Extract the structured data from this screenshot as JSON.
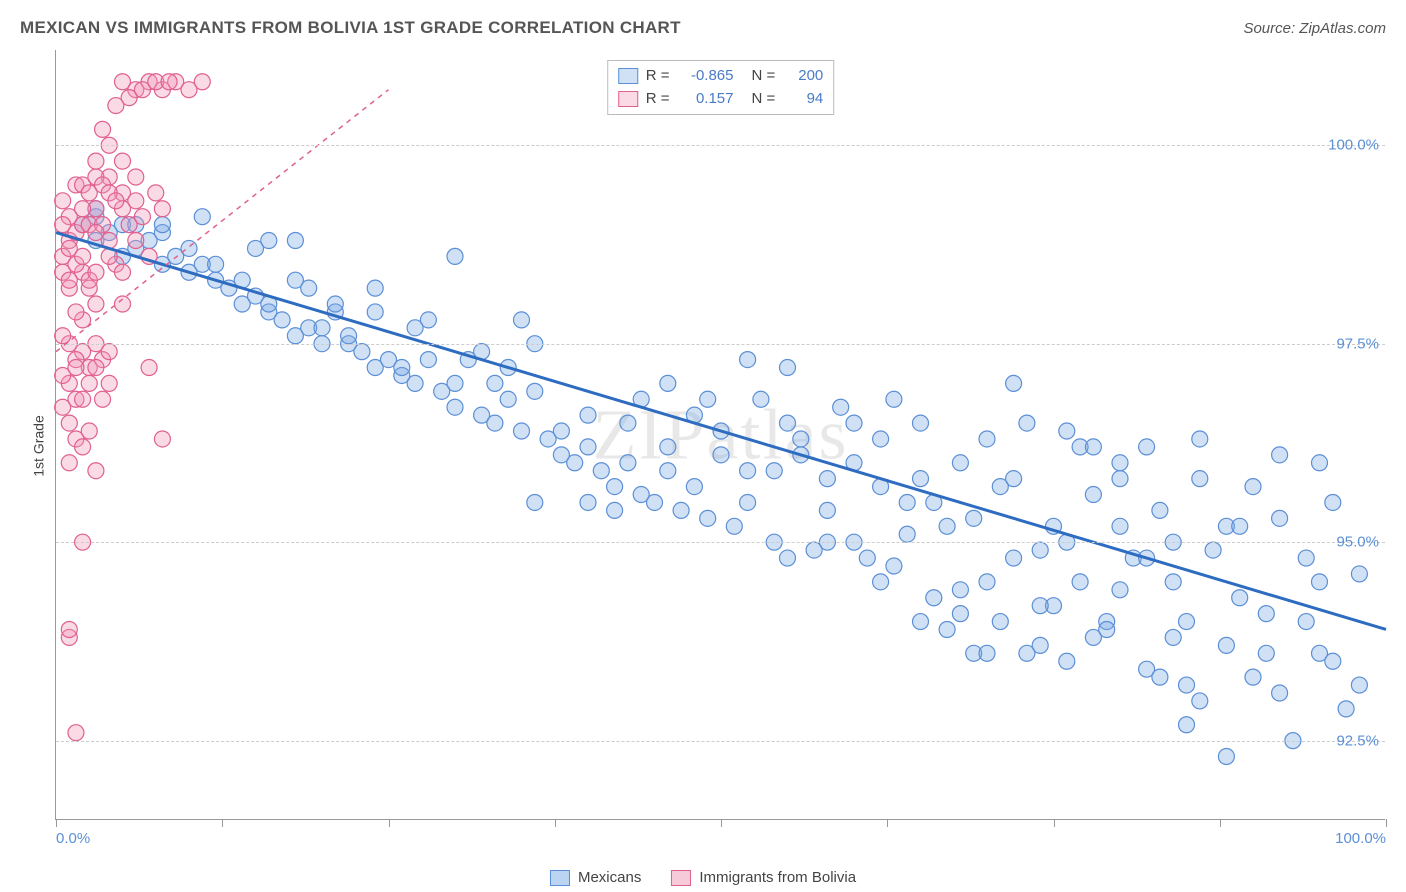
{
  "title": "MEXICAN VS IMMIGRANTS FROM BOLIVIA 1ST GRADE CORRELATION CHART",
  "source": "Source: ZipAtlas.com",
  "ylabel": "1st Grade",
  "watermark": "ZIPatlas",
  "chart": {
    "type": "scatter",
    "xlim": [
      0,
      100
    ],
    "ylim": [
      91.5,
      101.2
    ],
    "x_ticks": [
      0,
      12.5,
      25,
      37.5,
      50,
      62.5,
      75,
      87.5,
      100
    ],
    "x_tick_labels": {
      "0": "0.0%",
      "100": "100.0%"
    },
    "y_gridlines": [
      92.5,
      95.0,
      97.5,
      100.0
    ],
    "y_tick_labels": [
      "92.5%",
      "95.0%",
      "97.5%",
      "100.0%"
    ],
    "background_color": "#ffffff",
    "grid_color": "#cccccc",
    "axis_color": "#999999",
    "tick_label_color": "#5b8fd6",
    "marker_radius": 8,
    "marker_stroke_width": 1.2,
    "series": [
      {
        "name": "Mexicans",
        "fill": "rgba(120,170,230,0.35)",
        "stroke": "#5b8fd6",
        "R": "-0.865",
        "N": "200",
        "trend": {
          "x1": 0,
          "y1": 98.9,
          "x2": 100,
          "y2": 93.9,
          "color": "#2d6cc0",
          "width": 3,
          "dash": ""
        },
        "points": [
          [
            2,
            99.0
          ],
          [
            3,
            98.8
          ],
          [
            4,
            98.9
          ],
          [
            3,
            99.1
          ],
          [
            5,
            99.0
          ],
          [
            6,
            98.7
          ],
          [
            5,
            98.6
          ],
          [
            7,
            98.8
          ],
          [
            8,
            98.5
          ],
          [
            6,
            99.0
          ],
          [
            9,
            98.6
          ],
          [
            10,
            98.4
          ],
          [
            8,
            98.9
          ],
          [
            11,
            98.5
          ],
          [
            12,
            98.3
          ],
          [
            10,
            98.7
          ],
          [
            13,
            98.2
          ],
          [
            14,
            98.0
          ],
          [
            12,
            98.5
          ],
          [
            15,
            98.1
          ],
          [
            16,
            97.9
          ],
          [
            14,
            98.3
          ],
          [
            17,
            97.8
          ],
          [
            18,
            97.6
          ],
          [
            16,
            98.0
          ],
          [
            19,
            97.7
          ],
          [
            20,
            97.5
          ],
          [
            18,
            98.3
          ],
          [
            21,
            97.9
          ],
          [
            22,
            97.5
          ],
          [
            20,
            97.7
          ],
          [
            23,
            97.4
          ],
          [
            24,
            97.2
          ],
          [
            22,
            97.6
          ],
          [
            25,
            97.3
          ],
          [
            26,
            97.1
          ],
          [
            24,
            98.2
          ],
          [
            27,
            97.0
          ],
          [
            28,
            97.3
          ],
          [
            26,
            97.2
          ],
          [
            29,
            96.9
          ],
          [
            30,
            96.7
          ],
          [
            28,
            97.8
          ],
          [
            31,
            97.3
          ],
          [
            32,
            96.6
          ],
          [
            30,
            97.0
          ],
          [
            33,
            96.5
          ],
          [
            34,
            96.8
          ],
          [
            32,
            97.4
          ],
          [
            35,
            96.4
          ],
          [
            36,
            96.9
          ],
          [
            34,
            97.2
          ],
          [
            37,
            96.3
          ],
          [
            38,
            96.1
          ],
          [
            36,
            95.5
          ],
          [
            39,
            96.0
          ],
          [
            40,
            96.6
          ],
          [
            38,
            96.4
          ],
          [
            41,
            95.9
          ],
          [
            42,
            95.7
          ],
          [
            40,
            96.2
          ],
          [
            43,
            96.5
          ],
          [
            44,
            95.6
          ],
          [
            42,
            95.4
          ],
          [
            45,
            95.5
          ],
          [
            46,
            96.2
          ],
          [
            44,
            96.8
          ],
          [
            47,
            95.4
          ],
          [
            48,
            96.6
          ],
          [
            46,
            95.9
          ],
          [
            49,
            95.3
          ],
          [
            50,
            96.4
          ],
          [
            48,
            95.7
          ],
          [
            51,
            95.2
          ],
          [
            52,
            95.9
          ],
          [
            50,
            96.1
          ],
          [
            53,
            96.8
          ],
          [
            54,
            95.0
          ],
          [
            52,
            95.5
          ],
          [
            55,
            97.2
          ],
          [
            56,
            96.1
          ],
          [
            54,
            95.9
          ],
          [
            57,
            94.9
          ],
          [
            58,
            95.8
          ],
          [
            56,
            96.3
          ],
          [
            59,
            96.7
          ],
          [
            60,
            95.0
          ],
          [
            58,
            95.4
          ],
          [
            61,
            94.8
          ],
          [
            62,
            95.7
          ],
          [
            60,
            96.0
          ],
          [
            63,
            94.7
          ],
          [
            64,
            95.5
          ],
          [
            62,
            96.3
          ],
          [
            65,
            94.0
          ],
          [
            66,
            94.3
          ],
          [
            64,
            95.1
          ],
          [
            67,
            93.9
          ],
          [
            68,
            94.4
          ],
          [
            66,
            95.5
          ],
          [
            69,
            95.3
          ],
          [
            70,
            96.3
          ],
          [
            68,
            94.1
          ],
          [
            71,
            94.0
          ],
          [
            72,
            95.8
          ],
          [
            70,
            94.5
          ],
          [
            73,
            93.6
          ],
          [
            74,
            93.7
          ],
          [
            72,
            94.8
          ],
          [
            75,
            94.2
          ],
          [
            76,
            96.4
          ],
          [
            74,
            94.9
          ],
          [
            77,
            96.2
          ],
          [
            78,
            95.6
          ],
          [
            76,
            93.5
          ],
          [
            79,
            94.0
          ],
          [
            80,
            95.2
          ],
          [
            78,
            93.8
          ],
          [
            81,
            94.8
          ],
          [
            82,
            93.4
          ],
          [
            80,
            96.0
          ],
          [
            83,
            93.3
          ],
          [
            84,
            94.5
          ],
          [
            82,
            96.2
          ],
          [
            85,
            93.2
          ],
          [
            86,
            96.3
          ],
          [
            84,
            95.0
          ],
          [
            87,
            94.9
          ],
          [
            88,
            93.7
          ],
          [
            86,
            93.0
          ],
          [
            89,
            94.3
          ],
          [
            90,
            95.7
          ],
          [
            88,
            92.3
          ],
          [
            91,
            94.1
          ],
          [
            92,
            96.1
          ],
          [
            90,
            93.3
          ],
          [
            93,
            92.5
          ],
          [
            94,
            94.0
          ],
          [
            92,
            95.3
          ],
          [
            95,
            96.0
          ],
          [
            96,
            93.5
          ],
          [
            94,
            94.8
          ],
          [
            97,
            92.9
          ],
          [
            98,
            94.6
          ],
          [
            96,
            95.5
          ],
          [
            72,
            97.0
          ],
          [
            85,
            94.0
          ],
          [
            63,
            96.8
          ],
          [
            78,
            96.2
          ],
          [
            80,
            95.8
          ],
          [
            55,
            94.8
          ],
          [
            67,
            95.2
          ],
          [
            73,
            96.5
          ],
          [
            69,
            93.6
          ],
          [
            88,
            95.2
          ],
          [
            82,
            94.8
          ],
          [
            91,
            93.6
          ],
          [
            76,
            95.0
          ],
          [
            85,
            92.7
          ],
          [
            95,
            93.6
          ],
          [
            3,
            99.2
          ],
          [
            8,
            99.0
          ],
          [
            15,
            98.7
          ],
          [
            19,
            98.2
          ],
          [
            24,
            97.9
          ],
          [
            30,
            98.6
          ],
          [
            35,
            97.8
          ],
          [
            18,
            98.8
          ],
          [
            11,
            99.1
          ],
          [
            16,
            98.8
          ],
          [
            21,
            98.0
          ],
          [
            27,
            97.7
          ],
          [
            33,
            97.0
          ],
          [
            36,
            97.5
          ],
          [
            40,
            95.5
          ],
          [
            43,
            96.0
          ],
          [
            46,
            97.0
          ],
          [
            49,
            96.8
          ],
          [
            52,
            97.3
          ],
          [
            55,
            96.5
          ],
          [
            58,
            95.0
          ],
          [
            62,
            94.5
          ],
          [
            65,
            95.8
          ],
          [
            68,
            96.0
          ],
          [
            71,
            95.7
          ],
          [
            74,
            94.2
          ],
          [
            77,
            94.5
          ],
          [
            80,
            94.4
          ],
          [
            83,
            95.4
          ],
          [
            86,
            95.8
          ],
          [
            89,
            95.2
          ],
          [
            92,
            93.1
          ],
          [
            95,
            94.5
          ],
          [
            98,
            93.2
          ],
          [
            70,
            93.6
          ],
          [
            75,
            95.2
          ],
          [
            60,
            96.5
          ],
          [
            65,
            96.5
          ],
          [
            79,
            93.9
          ],
          [
            84,
            93.8
          ]
        ]
      },
      {
        "name": "Immigrants from Bolivia",
        "fill": "rgba(240,150,180,0.35)",
        "stroke": "#e06090",
        "R": "0.157",
        "N": "94",
        "trend": {
          "x1": 0,
          "y1": 97.4,
          "x2": 25,
          "y2": 100.7,
          "color": "#e06090",
          "width": 1.5,
          "dash": "5,5"
        },
        "points": [
          [
            1,
            98.8
          ],
          [
            0.5,
            98.6
          ],
          [
            1.5,
            98.9
          ],
          [
            2,
            99.0
          ],
          [
            1,
            99.1
          ],
          [
            0.5,
            99.3
          ],
          [
            2.5,
            99.0
          ],
          [
            1.5,
            99.5
          ],
          [
            3,
            99.2
          ],
          [
            1,
            97.5
          ],
          [
            2,
            97.4
          ],
          [
            0.5,
            97.6
          ],
          [
            1.5,
            97.3
          ],
          [
            3,
            97.5
          ],
          [
            2.5,
            97.2
          ],
          [
            1,
            97.0
          ],
          [
            3.5,
            97.3
          ],
          [
            2,
            97.8
          ],
          [
            1.5,
            96.8
          ],
          [
            4,
            97.4
          ],
          [
            3,
            98.0
          ],
          [
            2.5,
            98.2
          ],
          [
            4.5,
            98.5
          ],
          [
            5,
            99.2
          ],
          [
            6,
            99.6
          ],
          [
            5,
            100.8
          ],
          [
            6,
            100.7
          ],
          [
            7,
            100.8
          ],
          [
            8,
            100.7
          ],
          [
            9,
            100.8
          ],
          [
            10,
            100.7
          ],
          [
            11,
            100.8
          ],
          [
            5.5,
            100.6
          ],
          [
            7.5,
            100.8
          ],
          [
            6.5,
            100.7
          ],
          [
            8.5,
            100.8
          ],
          [
            4,
            100.0
          ],
          [
            3.5,
            100.2
          ],
          [
            4.5,
            100.5
          ],
          [
            3,
            99.8
          ],
          [
            4,
            99.6
          ],
          [
            2,
            99.5
          ],
          [
            5,
            99.4
          ],
          [
            6,
            99.3
          ],
          [
            3.5,
            99.0
          ],
          [
            2,
            98.4
          ],
          [
            1,
            98.2
          ],
          [
            3,
            98.9
          ],
          [
            4,
            98.6
          ],
          [
            5,
            98.4
          ],
          [
            1,
            96.5
          ],
          [
            1.5,
            96.3
          ],
          [
            2,
            96.2
          ],
          [
            2.5,
            96.4
          ],
          [
            3,
            95.9
          ],
          [
            1,
            96.0
          ],
          [
            0.5,
            96.7
          ],
          [
            4,
            97.0
          ],
          [
            3.5,
            96.8
          ],
          [
            7,
            97.2
          ],
          [
            8,
            96.3
          ],
          [
            2,
            95.0
          ],
          [
            1,
            93.8
          ],
          [
            1.5,
            92.6
          ],
          [
            1,
            93.9
          ],
          [
            0.5,
            97.1
          ],
          [
            1.5,
            97.2
          ],
          [
            2,
            96.8
          ],
          [
            2.5,
            97.0
          ],
          [
            3,
            97.2
          ],
          [
            0.5,
            98.4
          ],
          [
            1,
            98.3
          ],
          [
            1.5,
            98.5
          ],
          [
            2,
            98.6
          ],
          [
            2.5,
            98.3
          ],
          [
            3,
            98.4
          ],
          [
            0.5,
            99.0
          ],
          [
            1,
            98.7
          ],
          [
            1.5,
            97.9
          ],
          [
            2,
            99.2
          ],
          [
            2.5,
            99.4
          ],
          [
            3,
            99.6
          ],
          [
            3.5,
            99.5
          ],
          [
            4,
            99.4
          ],
          [
            4.5,
            99.3
          ],
          [
            5,
            99.8
          ],
          [
            5.5,
            99.0
          ],
          [
            6,
            98.8
          ],
          [
            6.5,
            99.1
          ],
          [
            7,
            98.6
          ],
          [
            7.5,
            99.4
          ],
          [
            8,
            99.2
          ],
          [
            4,
            98.8
          ],
          [
            5,
            98.0
          ]
        ]
      }
    ]
  },
  "stats_box": {
    "rows": [
      {
        "swatch_fill": "rgba(120,170,230,0.35)",
        "swatch_border": "#5b8fd6",
        "r_label": "R =",
        "r_val": "-0.865",
        "n_label": "N =",
        "n_val": "200"
      },
      {
        "swatch_fill": "rgba(240,150,180,0.35)",
        "swatch_border": "#e06090",
        "r_label": "R =",
        "r_val": "0.157",
        "n_label": "N =",
        "n_val": "94"
      }
    ]
  },
  "legend": {
    "items": [
      {
        "swatch_fill": "rgba(120,170,230,0.5)",
        "swatch_border": "#5b8fd6",
        "label": "Mexicans"
      },
      {
        "swatch_fill": "rgba(240,150,180,0.5)",
        "swatch_border": "#e06090",
        "label": "Immigrants from Bolivia"
      }
    ]
  }
}
